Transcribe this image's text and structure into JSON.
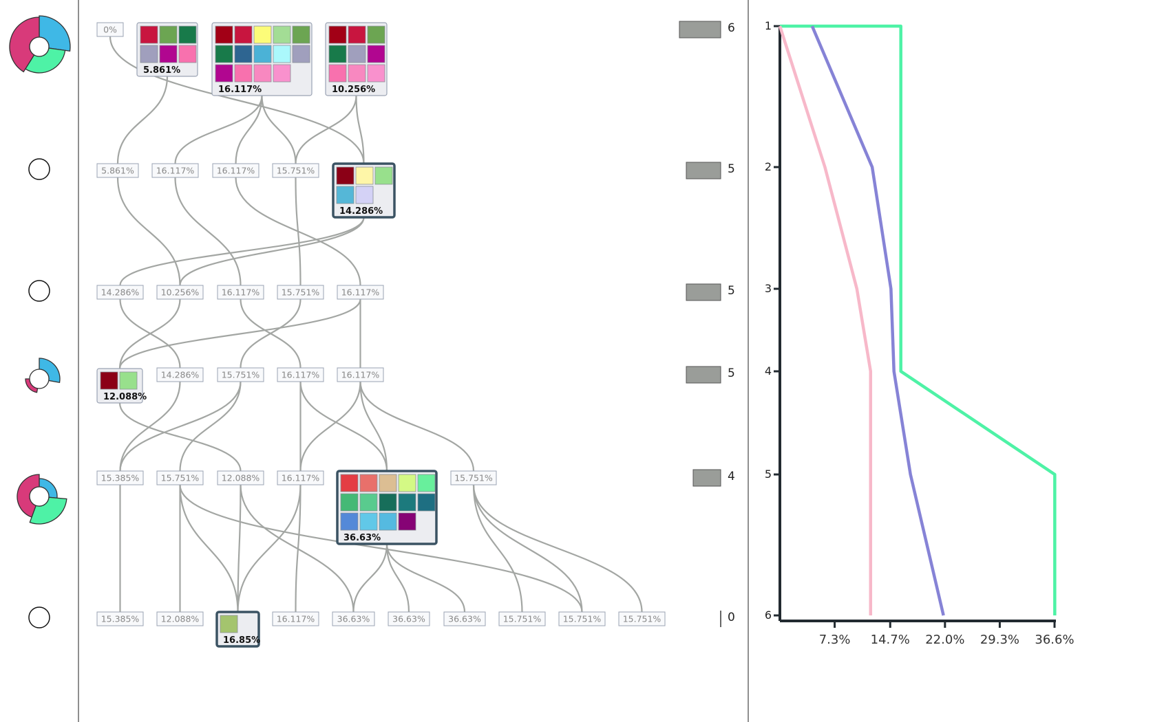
{
  "colors": {
    "donut_blue": "#3fb8e6",
    "donut_pink": "#d83a7a",
    "donut_green": "#4ef2a6",
    "count_bar": "#9a9d99",
    "edge": "#a3a6a3",
    "axis": "#222a30",
    "selected_border": "#3b5363",
    "line_green": "#4ef2a6",
    "line_purple": "#8683d6",
    "line_pink": "#f7b8c9"
  },
  "rows": [
    {
      "level": 1,
      "count": "6",
      "icon": "donut-full-icon"
    },
    {
      "level": 2,
      "count": "5",
      "icon": "circle-empty-icon"
    },
    {
      "level": 3,
      "count": "5",
      "icon": "circle-empty-icon"
    },
    {
      "level": 4,
      "count": "5",
      "icon": "donut-partial-icon"
    },
    {
      "level": 5,
      "count": "4",
      "icon": "donut-medium-icon"
    },
    {
      "level": 6,
      "count": "0",
      "icon": "circle-empty-icon"
    }
  ],
  "nodes": [
    {
      "id": "r0n0",
      "row": 0,
      "label": "0%"
    },
    {
      "id": "r0c1",
      "row": 0,
      "label": "5.861%",
      "colors": [
        "#c8153f",
        "#6ca552",
        "#187a4a",
        "#a09fbd",
        "#b10690",
        "#f871ae"
      ]
    },
    {
      "id": "r0c2",
      "row": 0,
      "label": "16.117%",
      "colors": [
        "#a20016",
        "#c8153f",
        "#fcfc79",
        "#a3dd95",
        "#6ca552",
        "#187a4a",
        "#2e6591",
        "#4bb2d6",
        "#abf8fc",
        "#a09fbd",
        "#b10690",
        "#f871ae",
        "#f888c0",
        "#f991cd"
      ]
    },
    {
      "id": "r0c3",
      "row": 0,
      "label": "10.256%",
      "colors": [
        "#a20016",
        "#c8153f",
        "#6ca552",
        "#187a4a",
        "#a09fbd",
        "#b10690",
        "#f871ae",
        "#f888c0",
        "#f991cd"
      ]
    },
    {
      "id": "r1n0",
      "row": 1,
      "label": "5.861%"
    },
    {
      "id": "r1n1",
      "row": 1,
      "label": "16.117%"
    },
    {
      "id": "r1n2",
      "row": 1,
      "label": "16.117%"
    },
    {
      "id": "r1n3",
      "row": 1,
      "label": "15.751%"
    },
    {
      "id": "r1c4",
      "row": 1,
      "label": "14.286%",
      "selected": true,
      "colors": [
        "#8b0016",
        "#fef6a8",
        "#98e08c",
        "#55b7d7",
        "#d4d2f6"
      ]
    },
    {
      "id": "r2n0",
      "row": 2,
      "label": "14.286%"
    },
    {
      "id": "r2n1",
      "row": 2,
      "label": "10.256%"
    },
    {
      "id": "r2n2",
      "row": 2,
      "label": "16.117%"
    },
    {
      "id": "r2n3",
      "row": 2,
      "label": "15.751%"
    },
    {
      "id": "r2n4",
      "row": 2,
      "label": "16.117%"
    },
    {
      "id": "r3c0",
      "row": 3,
      "label": "12.088%",
      "colors": [
        "#8b0016",
        "#98e08c"
      ]
    },
    {
      "id": "r3n1",
      "row": 3,
      "label": "14.286%"
    },
    {
      "id": "r3n2",
      "row": 3,
      "label": "15.751%"
    },
    {
      "id": "r3n3",
      "row": 3,
      "label": "16.117%"
    },
    {
      "id": "r3n4",
      "row": 3,
      "label": "16.117%"
    },
    {
      "id": "r4n0",
      "row": 4,
      "label": "15.385%"
    },
    {
      "id": "r4n1",
      "row": 4,
      "label": "15.751%"
    },
    {
      "id": "r4n2",
      "row": 4,
      "label": "12.088%"
    },
    {
      "id": "r4n3",
      "row": 4,
      "label": "16.117%"
    },
    {
      "id": "r4c4",
      "row": 4,
      "label": "36.63%",
      "selected": true,
      "colors": [
        "#e43d44",
        "#e8706b",
        "#dcbe93",
        "#d4f985",
        "#68ef9c",
        "#45b976",
        "#59cb8e",
        "#176e5a",
        "#1c7a7d",
        "#1e6f82",
        "#5489d8",
        "#61c8e8",
        "#55bae0",
        "#860375"
      ]
    },
    {
      "id": "r4n5",
      "row": 4,
      "label": "15.751%"
    },
    {
      "id": "r5n0",
      "row": 5,
      "label": "15.385%"
    },
    {
      "id": "r5n1",
      "row": 5,
      "label": "12.088%"
    },
    {
      "id": "r5c2",
      "row": 5,
      "label": "16.85%",
      "selected": true,
      "colors": [
        "#a4c46e"
      ]
    },
    {
      "id": "r5n3",
      "row": 5,
      "label": "16.117%"
    },
    {
      "id": "r5n4",
      "row": 5,
      "label": "36.63%"
    },
    {
      "id": "r5n5",
      "row": 5,
      "label": "36.63%"
    },
    {
      "id": "r5n6",
      "row": 5,
      "label": "36.63%"
    },
    {
      "id": "r5n7",
      "row": 5,
      "label": "15.751%"
    },
    {
      "id": "r5n8",
      "row": 5,
      "label": "15.751%"
    },
    {
      "id": "r5n9",
      "row": 5,
      "label": "15.751%"
    }
  ],
  "edges": [
    [
      "r0n0",
      "r1c4"
    ],
    [
      "r0c1",
      "r1n0"
    ],
    [
      "r0c2",
      "r1n1"
    ],
    [
      "r0c2",
      "r1n2"
    ],
    [
      "r0c2",
      "r1n3"
    ],
    [
      "r0c3",
      "r1n3"
    ],
    [
      "r0c3",
      "r1c4"
    ],
    [
      "r1n0",
      "r2n1"
    ],
    [
      "r1n1",
      "r2n2"
    ],
    [
      "r1n2",
      "r2n4"
    ],
    [
      "r1n3",
      "r2n3"
    ],
    [
      "r1c4",
      "r2n0"
    ],
    [
      "r1c4",
      "r2n1"
    ],
    [
      "r2n0",
      "r3n1"
    ],
    [
      "r2n1",
      "r3c0"
    ],
    [
      "r2n2",
      "r3n3"
    ],
    [
      "r2n3",
      "r3n2"
    ],
    [
      "r2n4",
      "r3c0"
    ],
    [
      "r2n4",
      "r3n4"
    ],
    [
      "r3c0",
      "r4n2"
    ],
    [
      "r3n1",
      "r4n0"
    ],
    [
      "r3n2",
      "r4n0"
    ],
    [
      "r3n2",
      "r4n1"
    ],
    [
      "r3n3",
      "r4n3"
    ],
    [
      "r3n3",
      "r4c4"
    ],
    [
      "r3n4",
      "r4n3"
    ],
    [
      "r3n4",
      "r4c4"
    ],
    [
      "r3n4",
      "r4n5"
    ],
    [
      "r4n0",
      "r5n0"
    ],
    [
      "r4n1",
      "r5n1"
    ],
    [
      "r4n1",
      "r5c2"
    ],
    [
      "r4n1",
      "r5n8"
    ],
    [
      "r4n2",
      "r5c2"
    ],
    [
      "r4n2",
      "r5n4"
    ],
    [
      "r4n3",
      "r5n3"
    ],
    [
      "r4n3",
      "r5c2"
    ],
    [
      "r4c4",
      "r5n4"
    ],
    [
      "r4c4",
      "r5n5"
    ],
    [
      "r4c4",
      "r5n6"
    ],
    [
      "r4n5",
      "r5n7"
    ],
    [
      "r4n5",
      "r5n8"
    ],
    [
      "r4n5",
      "r5n9"
    ]
  ],
  "chart_data": {
    "type": "line",
    "orientation": "vertical",
    "x_ticks": [
      "7.3%",
      "14.7%",
      "22.0%",
      "29.3%",
      "36.6%"
    ],
    "x_tick_values": [
      7.3,
      14.7,
      22.0,
      29.3,
      36.6
    ],
    "xlim": [
      0,
      36.6
    ],
    "y_ticks": [
      "1",
      "2",
      "3",
      "4",
      "5",
      "6"
    ],
    "series": [
      {
        "color": "#4ef2a6",
        "points": [
          [
            0,
            1
          ],
          [
            16.117,
            1
          ],
          [
            16.117,
            4
          ],
          [
            36.63,
            5
          ],
          [
            36.63,
            6
          ]
        ]
      },
      {
        "color": "#8683d6",
        "points": [
          [
            4.3,
            1
          ],
          [
            12.3,
            2
          ],
          [
            14.8,
            3
          ],
          [
            15.2,
            4
          ],
          [
            17.4,
            5
          ],
          [
            21.8,
            6
          ]
        ]
      },
      {
        "color": "#f7b8c9",
        "points": [
          [
            0,
            1
          ],
          [
            6.0,
            2
          ],
          [
            10.256,
            3
          ],
          [
            12.088,
            4
          ],
          [
            12.088,
            5
          ],
          [
            12.088,
            6
          ]
        ]
      }
    ]
  }
}
